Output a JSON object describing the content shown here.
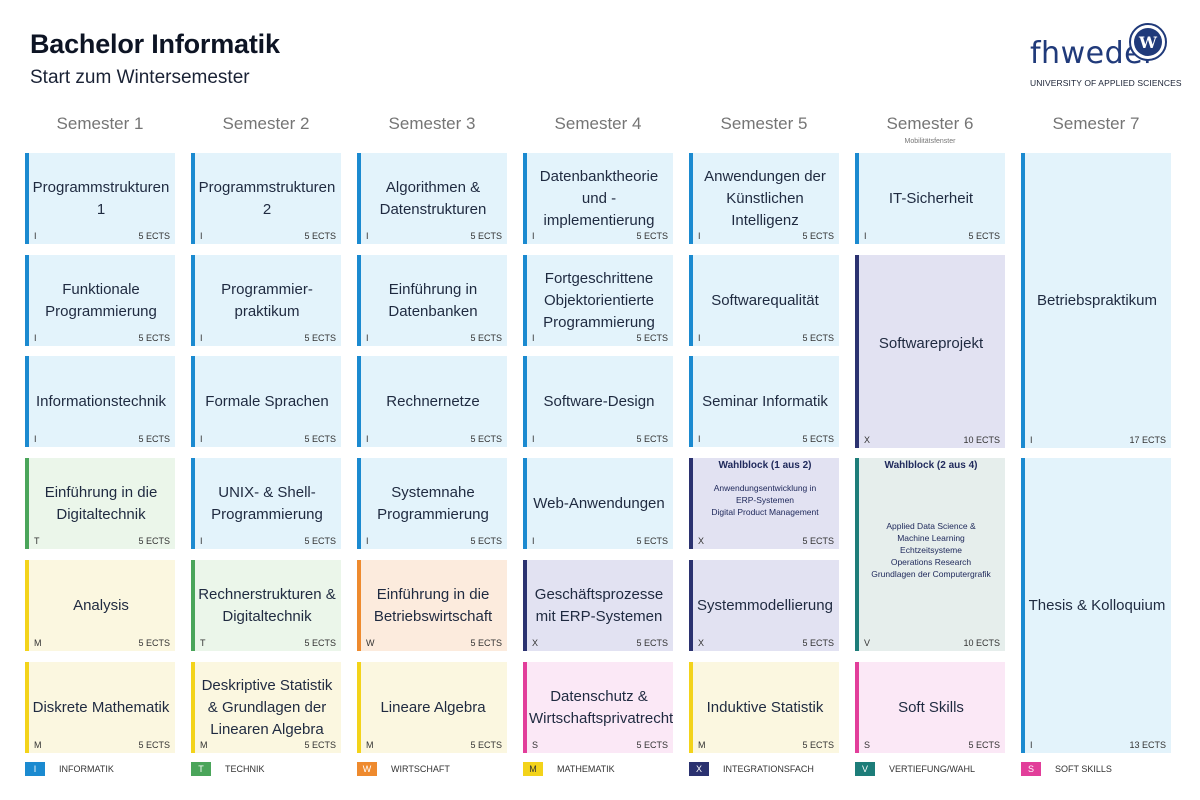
{
  "header": {
    "title": "Bachelor Informatik",
    "subtitle": "Start zum Wintersemester",
    "logo_text": "fhwedel",
    "logo_emblem": "W",
    "logo_claim": "UNIVERSITY OF APPLIED SCIENCES"
  },
  "colors": {
    "I": "#1b8ad0",
    "T": "#4aa55a",
    "W": "#ee8a2e",
    "M": "#f3d31a",
    "X": "#2b3270",
    "V": "#1d7d79",
    "S": "#e23e9a"
  },
  "semesters": [
    {
      "label": "Semester 1"
    },
    {
      "label": "Semester 2"
    },
    {
      "label": "Semester 3"
    },
    {
      "label": "Semester 4"
    },
    {
      "label": "Semester 5"
    },
    {
      "label": "Semester 6",
      "note": "Mobilitätsfenster"
    },
    {
      "label": "Semester 7"
    }
  ],
  "modules": {
    "s1r1": {
      "title": "Programmstrukturen 1",
      "cat": "I",
      "ects": "5 ECTS"
    },
    "s1r2": {
      "title": "Funktionale Programmierung",
      "cat": "I",
      "ects": "5 ECTS"
    },
    "s1r3": {
      "title": "Informationstechnik",
      "cat": "I",
      "ects": "5 ECTS"
    },
    "s1r4": {
      "title": "Einführung in die Digitaltechnik",
      "cat": "T",
      "ects": "5 ECTS"
    },
    "s1r5": {
      "title": "Analysis",
      "cat": "M",
      "ects": "5 ECTS"
    },
    "s1r6": {
      "title": "Diskrete Mathematik",
      "cat": "M",
      "ects": "5 ECTS"
    },
    "s2r1": {
      "title": "Programmstrukturen 2",
      "cat": "I",
      "ects": "5 ECTS"
    },
    "s2r2": {
      "title": "Programmier- praktikum",
      "cat": "I",
      "ects": "5 ECTS"
    },
    "s2r3": {
      "title": "Formale Sprachen",
      "cat": "I",
      "ects": "5 ECTS"
    },
    "s2r4": {
      "title": "UNIX- & Shell- Programmierung",
      "cat": "I",
      "ects": "5 ECTS"
    },
    "s2r5": {
      "title": "Rechnerstrukturen & Digitaltechnik",
      "cat": "T",
      "ects": "5 ECTS"
    },
    "s2r6": {
      "title": "Deskriptive Statistik & Grundlagen der Linearen Algebra",
      "cat": "M",
      "ects": "5 ECTS"
    },
    "s3r1": {
      "title": "Algorithmen & Datenstrukturen",
      "cat": "I",
      "ects": "5 ECTS"
    },
    "s3r2": {
      "title": "Einführung in Datenbanken",
      "cat": "I",
      "ects": "5 ECTS"
    },
    "s3r3": {
      "title": "Rechnernetze",
      "cat": "I",
      "ects": "5 ECTS"
    },
    "s3r4": {
      "title": "Systemnahe Programmierung",
      "cat": "I",
      "ects": "5 ECTS"
    },
    "s3r5": {
      "title": "Einführung in die Betriebswirtschaft",
      "cat": "W",
      "ects": "5 ECTS"
    },
    "s3r6": {
      "title": "Lineare Algebra",
      "cat": "M",
      "ects": "5 ECTS"
    },
    "s4r1": {
      "title": "Datenbanktheorie und -implementierung",
      "cat": "I",
      "ects": "5 ECTS"
    },
    "s4r2": {
      "title": "Fortgeschrittene Objektorientierte Programmierung",
      "cat": "I",
      "ects": "5 ECTS"
    },
    "s4r3": {
      "title": "Software-Design",
      "cat": "I",
      "ects": "5 ECTS"
    },
    "s4r4": {
      "title": "Web-Anwendungen",
      "cat": "I",
      "ects": "5 ECTS"
    },
    "s4r5": {
      "title": "Geschäftsprozesse mit ERP-Systemen",
      "cat": "X",
      "ects": "5 ECTS"
    },
    "s4r6": {
      "title": "Datenschutz & Wirtschaftsprivatrecht",
      "cat": "S",
      "ects": "5 ECTS"
    },
    "s5r1": {
      "title": "Anwendungen der Künstlichen Intelligenz",
      "cat": "I",
      "ects": "5 ECTS"
    },
    "s5r2": {
      "title": "Softwarequalität",
      "cat": "I",
      "ects": "5 ECTS"
    },
    "s5r3": {
      "title": "Seminar Informatik",
      "cat": "I",
      "ects": "5 ECTS"
    },
    "s5r4": {
      "head": "Wahlblock (1 aus 2)",
      "items": [
        "Anwendungsentwicklung in",
        "ERP-Systemen",
        "Digital Product Management"
      ],
      "cat": "X",
      "ects": "5 ECTS"
    },
    "s5r5": {
      "title": "Systemmodellierung",
      "cat": "X",
      "ects": "5 ECTS"
    },
    "s5r6": {
      "title": "Induktive Statistik",
      "cat": "M",
      "ects": "5 ECTS"
    },
    "s6r1": {
      "title": "IT-Sicherheit",
      "cat": "I",
      "ects": "5 ECTS"
    },
    "s6r2": {
      "title": "Softwareprojekt",
      "cat": "X",
      "ects": "10 ECTS"
    },
    "s6r4": {
      "head": "Wahlblock (2 aus 4)",
      "items": [
        "Applied Data Science &",
        "Machine Learning",
        "Echtzeitsysteme",
        "Operations Research",
        "Grundlagen der Computergrafik"
      ],
      "cat": "V",
      "ects": "10 ECTS"
    },
    "s6r6": {
      "title": "Soft Skills",
      "cat": "S",
      "ects": "5 ECTS"
    },
    "s7r1": {
      "title": "Betriebspraktikum",
      "cat": "I",
      "ects": "17 ECTS"
    },
    "s7r4": {
      "title": "Thesis & Kolloquium",
      "cat": "I",
      "ects": "13 ECTS"
    }
  },
  "legend": [
    {
      "code": "I",
      "label": "INFORMATIK"
    },
    {
      "code": "T",
      "label": "TECHNIK"
    },
    {
      "code": "W",
      "label": "WIRTSCHAFT"
    },
    {
      "code": "M",
      "label": "MATHEMATIK"
    },
    {
      "code": "X",
      "label": "INTEGRATIONSFACH"
    },
    {
      "code": "V",
      "label": "VERTIEFUNG/WAHL"
    },
    {
      "code": "S",
      "label": "SOFT SKILLS"
    }
  ]
}
